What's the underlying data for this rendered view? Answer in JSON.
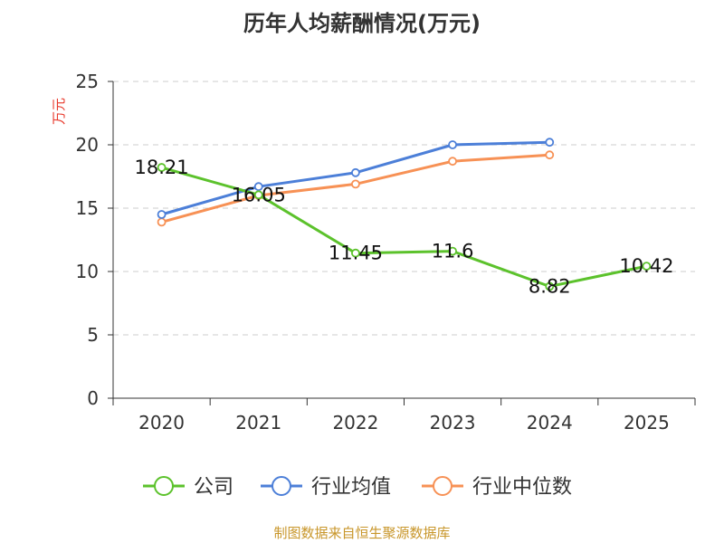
{
  "chart_data": {
    "type": "line",
    "title": "历年人均薪酬情况(万元)",
    "xlabel": "",
    "ylabel": "万元",
    "ylim": [
      0,
      25
    ],
    "yticks": [
      0,
      5,
      10,
      15,
      20,
      25
    ],
    "categories": [
      "2020",
      "2021",
      "2022",
      "2023",
      "2024",
      "2025"
    ],
    "grid": true,
    "legend_position": "bottom",
    "series": [
      {
        "name": "公司",
        "color": "#5cc22c",
        "values": [
          18.21,
          16.05,
          11.45,
          11.6,
          8.82,
          10.42
        ],
        "labels": [
          "18.21",
          "16.05",
          "11.45",
          "11.6",
          "8.82",
          "10.42"
        ]
      },
      {
        "name": "行业均值",
        "color": "#4c7fd8",
        "values": [
          14.5,
          16.7,
          17.8,
          20.0,
          20.2,
          null
        ]
      },
      {
        "name": "行业中位数",
        "color": "#f79155",
        "values": [
          13.9,
          16.0,
          16.9,
          18.7,
          19.2,
          null
        ]
      }
    ]
  },
  "footer": "制图数据来自恒生聚源数据库"
}
